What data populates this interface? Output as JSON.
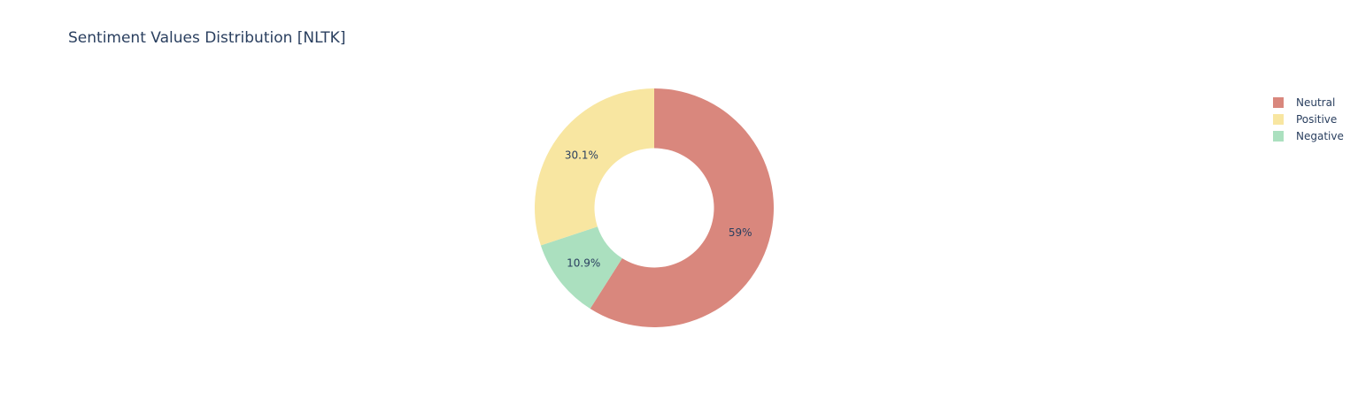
{
  "chart_data": {
    "type": "pie",
    "title": "Sentiment Values Distribution [NLTK]",
    "hole": 0.5,
    "direction": "clockwise",
    "start_angle_deg": 90,
    "slices": [
      {
        "label": "Neutral",
        "value": 59.0,
        "text": "59%",
        "color": "#d9877d"
      },
      {
        "label": "Negative",
        "value": 10.9,
        "text": "10.9%",
        "color": "#abe0bf"
      },
      {
        "label": "Positive",
        "value": 30.1,
        "text": "30.1%",
        "color": "#f8e6a1"
      }
    ],
    "legend": {
      "position": "top-right",
      "items": [
        {
          "label": "Neutral",
          "color": "#d9877d"
        },
        {
          "label": "Positive",
          "color": "#f8e6a1"
        },
        {
          "label": "Negative",
          "color": "#abe0bf"
        }
      ]
    }
  }
}
